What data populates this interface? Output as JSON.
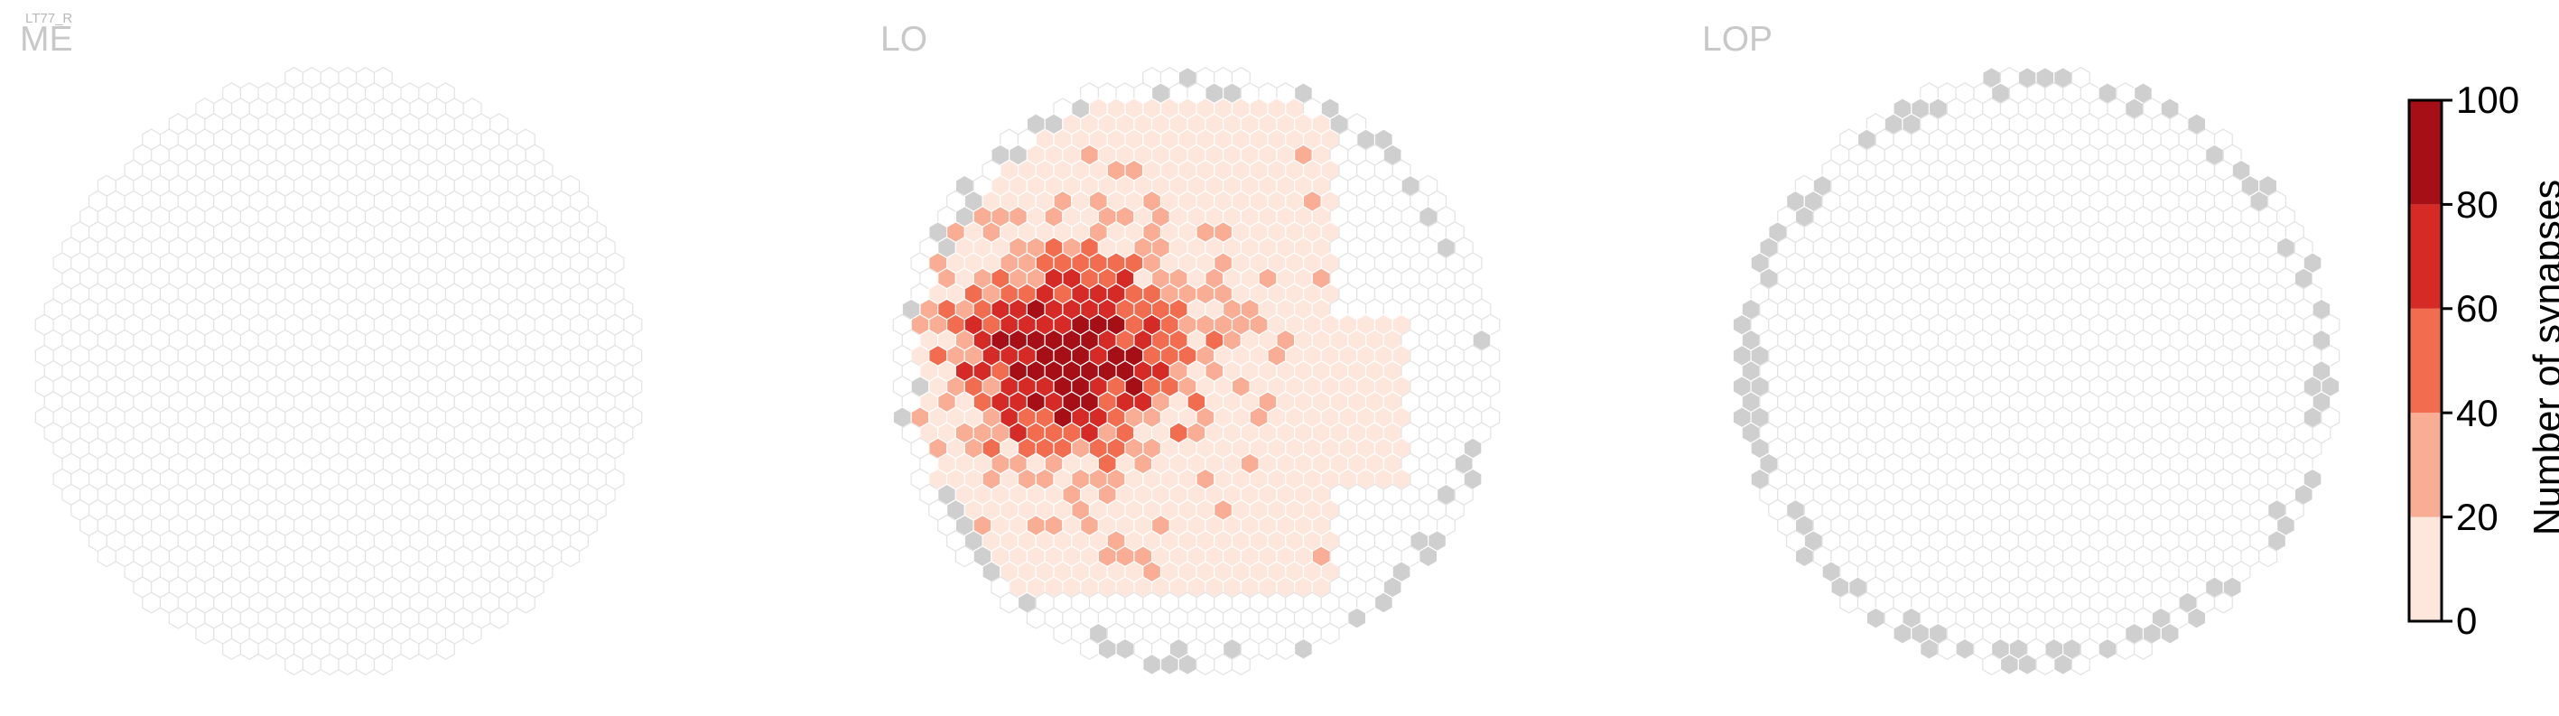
{
  "cell_id": "LT77_R",
  "chart_data": {
    "type": "heatmap",
    "panels": [
      {
        "title": "ME",
        "synapse_level": "none"
      },
      {
        "title": "LO",
        "synapse_level": "dense, peak near 100 in the left-center"
      },
      {
        "title": "LOP",
        "synapse_level": "none"
      }
    ],
    "colorbar": {
      "label": "Number of synapses",
      "range": [
        0,
        100
      ],
      "ticks": [
        "0",
        "20",
        "40",
        "60",
        "80",
        "100"
      ],
      "bins": [
        {
          "from": 0,
          "to": 20,
          "color": "#fde7dd"
        },
        {
          "from": 20,
          "to": 40,
          "color": "#f9ad94"
        },
        {
          "from": 40,
          "to": 60,
          "color": "#f26c4f"
        },
        {
          "from": 60,
          "to": 80,
          "color": "#d62a26"
        },
        {
          "from": 80,
          "to": 100,
          "color": "#a50f15"
        }
      ]
    },
    "colors": {
      "empty_column_fill": "#ffffff",
      "empty_column_edge": "#e3e3e3",
      "out_of_range_column": "#cfcfcf"
    }
  }
}
